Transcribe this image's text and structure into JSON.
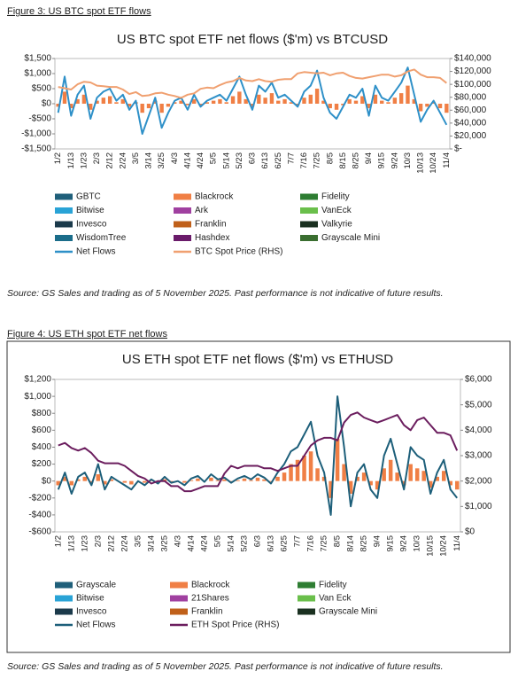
{
  "chart_data": [
    {
      "type": "combo",
      "caption": "Figure 3: US BTC spot ETF flows",
      "title": "US BTC spot ETF net flows ($'m) vs BTCUSD",
      "source": "Source: GS Sales and trading as of 5 November 2025. Past performance is not indicative of future results.",
      "categories": [
        "1/2",
        null,
        "1/13",
        null,
        "1/23",
        null,
        "2/3",
        null,
        "2/12",
        null,
        "2/24",
        null,
        "3/5",
        null,
        "3/14",
        null,
        "3/25",
        null,
        "4/3",
        null,
        "4/14",
        null,
        "4/24",
        null,
        "5/5",
        null,
        "5/14",
        null,
        "5/23",
        null,
        "6/3",
        null,
        "6/13",
        null,
        "6/25",
        null,
        "7/7",
        null,
        "7/16",
        null,
        "7/25",
        null,
        "8/5",
        null,
        "8/15",
        null,
        "8/25",
        null,
        "9/4",
        null,
        "9/15",
        null,
        "9/24",
        null,
        "10/3",
        null,
        "10/13",
        null,
        "10/24",
        null,
        "11/4"
      ],
      "ylim": [
        -1500,
        1500
      ],
      "yticks": [
        {
          "value": -1500,
          "label": "-$1,500"
        },
        {
          "value": -1000,
          "label": "-$1,000"
        },
        {
          "value": -500,
          "label": "-$500"
        },
        {
          "value": 0,
          "label": "$0"
        },
        {
          "value": 500,
          "label": "$500"
        },
        {
          "value": 1000,
          "label": "$1,000"
        },
        {
          "value": 1500,
          "label": "$1,500"
        }
      ],
      "y2lim": [
        0,
        140000
      ],
      "y2ticks": [
        {
          "value": 0,
          "label": "$-"
        },
        {
          "value": 20000,
          "label": "$20,000"
        },
        {
          "value": 40000,
          "label": "$40,000"
        },
        {
          "value": 60000,
          "label": "$60,000"
        },
        {
          "value": 80000,
          "label": "$80,000"
        },
        {
          "value": 100000,
          "label": "$100,000"
        },
        {
          "value": 120000,
          "label": "$120,000"
        },
        {
          "value": 140000,
          "label": "$140,000"
        }
      ],
      "series": [
        {
          "name": "GBTC",
          "kind": "bar",
          "color": "#1f5f7a"
        },
        {
          "name": "Blackrock",
          "kind": "bar",
          "color": "#f07f45",
          "values": [
            -100,
            400,
            -150,
            150,
            300,
            -200,
            100,
            200,
            250,
            50,
            150,
            -100,
            50,
            -300,
            -150,
            100,
            -300,
            -100,
            50,
            100,
            -50,
            150,
            -50,
            50,
            100,
            150,
            50,
            250,
            400,
            150,
            -100,
            300,
            200,
            350,
            100,
            150,
            50,
            -50,
            200,
            300,
            500,
            100,
            -150,
            -200,
            -50,
            150,
            100,
            250,
            -150,
            300,
            100,
            50,
            200,
            350,
            600,
            150,
            -250,
            -100,
            50,
            -150,
            -300
          ]
        },
        {
          "name": "Fidelity",
          "kind": "bar",
          "color": "#2e7d32"
        },
        {
          "name": "Bitwise",
          "kind": "bar",
          "color": "#29a3d6"
        },
        {
          "name": "Ark",
          "kind": "bar",
          "color": "#a040a0"
        },
        {
          "name": "VanEck",
          "kind": "bar",
          "color": "#6abf4b"
        },
        {
          "name": "Invesco",
          "kind": "bar",
          "color": "#1b3a4b"
        },
        {
          "name": "Franklin",
          "kind": "bar",
          "color": "#c0601a"
        },
        {
          "name": "Valkyrie",
          "kind": "bar",
          "color": "#1a3020"
        },
        {
          "name": "WisdomTree",
          "kind": "bar",
          "color": "#1b6d8a"
        },
        {
          "name": "Hashdex",
          "kind": "bar",
          "color": "#6a1b6a"
        },
        {
          "name": "Grayscale Mini",
          "kind": "bar",
          "color": "#3a6e30"
        },
        {
          "name": "Net Flows",
          "kind": "line",
          "color": "#2e90c8",
          "values": [
            -300,
            900,
            -400,
            300,
            600,
            -500,
            200,
            400,
            500,
            100,
            300,
            -200,
            100,
            -1000,
            -400,
            200,
            -800,
            -300,
            100,
            200,
            -200,
            300,
            -100,
            100,
            200,
            300,
            100,
            500,
            900,
            300,
            -200,
            600,
            400,
            700,
            200,
            300,
            100,
            -100,
            400,
            600,
            1100,
            200,
            -300,
            -500,
            -100,
            300,
            200,
            500,
            -400,
            600,
            200,
            100,
            400,
            700,
            1200,
            300,
            -600,
            -200,
            100,
            -300,
            -700
          ]
        },
        {
          "name": "BTC Spot Price (RHS)",
          "kind": "line",
          "axis": "y2",
          "color": "#f0a070",
          "values": [
            96000,
            94000,
            92000,
            100000,
            104000,
            103000,
            98000,
            97000,
            96000,
            96000,
            92000,
            85000,
            88000,
            82000,
            83000,
            86000,
            87000,
            84000,
            82000,
            79000,
            84000,
            86000,
            93000,
            95000,
            94000,
            99000,
            103000,
            105000,
            110000,
            106000,
            105000,
            108000,
            105000,
            104000,
            107000,
            108000,
            108000,
            117000,
            119000,
            118000,
            117000,
            118000,
            114000,
            117000,
            118000,
            113000,
            110000,
            109000,
            111000,
            113000,
            115000,
            115000,
            112000,
            114000,
            120000,
            123000,
            115000,
            111000,
            111000,
            110000,
            102000
          ]
        }
      ]
    },
    {
      "type": "combo",
      "caption": "Figure 4: US ETH spot ETF net flows",
      "title": "US ETH spot ETF net flows ($'m) vs ETHUSD",
      "source": "Source: GS Sales and trading as of 5 November 2025. Past performance is not indicative of future results.",
      "categories": [
        "1/2",
        null,
        "1/13",
        null,
        "1/23",
        null,
        "2/3",
        null,
        "2/12",
        null,
        "2/24",
        null,
        "3/5",
        null,
        "3/14",
        null,
        "3/25",
        null,
        "4/3",
        null,
        "4/14",
        null,
        "4/24",
        null,
        "5/5",
        null,
        "5/14",
        null,
        "5/23",
        null,
        "6/3",
        null,
        "6/13",
        null,
        "6/25",
        null,
        "7/7",
        null,
        "7/16",
        null,
        "7/25",
        null,
        "8/5",
        null,
        "8/14",
        null,
        "8/25",
        null,
        "9/4",
        null,
        "9/15",
        null,
        "9/24",
        null,
        "10/3",
        null,
        "10/15",
        null,
        "10/24",
        null,
        "11/4"
      ],
      "ylim": [
        -600,
        1200
      ],
      "yticks": [
        {
          "value": -600,
          "label": "-$600"
        },
        {
          "value": -400,
          "label": "-$400"
        },
        {
          "value": -200,
          "label": "-$200"
        },
        {
          "value": 0,
          "label": "$0"
        },
        {
          "value": 200,
          "label": "$200"
        },
        {
          "value": 400,
          "label": "$400"
        },
        {
          "value": 600,
          "label": "$600"
        },
        {
          "value": 800,
          "label": "$800"
        },
        {
          "value": 1000,
          "label": "$1,000"
        },
        {
          "value": 1200,
          "label": "$1,200"
        }
      ],
      "y2lim": [
        0,
        6000
      ],
      "y2ticks": [
        {
          "value": 0,
          "label": "$0"
        },
        {
          "value": 1000,
          "label": "$1,000"
        },
        {
          "value": 2000,
          "label": "$2,000"
        },
        {
          "value": 3000,
          "label": "$3,000"
        },
        {
          "value": 4000,
          "label": "$4,000"
        },
        {
          "value": 5000,
          "label": "$5,000"
        },
        {
          "value": 6000,
          "label": "$6,000"
        }
      ],
      "series": [
        {
          "name": "Grayscale",
          "kind": "bar",
          "color": "#1f5f7a"
        },
        {
          "name": "Blackrock",
          "kind": "bar",
          "color": "#f07f45",
          "values": [
            -50,
            50,
            -50,
            20,
            50,
            -20,
            80,
            -40,
            20,
            0,
            -20,
            -40,
            0,
            -20,
            10,
            -10,
            20,
            -10,
            0,
            -20,
            10,
            30,
            0,
            40,
            10,
            20,
            -10,
            10,
            30,
            10,
            40,
            20,
            -10,
            50,
            100,
            200,
            250,
            300,
            350,
            150,
            50,
            -200,
            500,
            200,
            -150,
            50,
            100,
            -50,
            -100,
            150,
            250,
            100,
            -50,
            200,
            150,
            120,
            -80,
            50,
            120,
            -50,
            -100
          ]
        },
        {
          "name": "Fidelity",
          "kind": "bar",
          "color": "#2e7d32"
        },
        {
          "name": "Bitwise",
          "kind": "bar",
          "color": "#29a3d6"
        },
        {
          "name": "21Shares",
          "kind": "bar",
          "color": "#a040a0"
        },
        {
          "name": "Van Eck",
          "kind": "bar",
          "color": "#6abf4b"
        },
        {
          "name": "Invesco",
          "kind": "bar",
          "color": "#1b3a4b"
        },
        {
          "name": "Franklin",
          "kind": "bar",
          "color": "#c0601a"
        },
        {
          "name": "Grayscale Mini",
          "kind": "bar",
          "color": "#1a3020"
        },
        {
          "name": "Net Flows",
          "kind": "line",
          "color": "#1d5f7a",
          "values": [
            -100,
            100,
            -150,
            50,
            100,
            -50,
            200,
            -100,
            50,
            0,
            -50,
            -100,
            0,
            -50,
            20,
            -30,
            50,
            -20,
            0,
            -50,
            30,
            60,
            -10,
            80,
            20,
            40,
            -20,
            30,
            60,
            20,
            80,
            40,
            -30,
            100,
            200,
            350,
            400,
            550,
            700,
            300,
            100,
            -400,
            1000,
            400,
            -300,
            100,
            200,
            -100,
            -200,
            300,
            500,
            200,
            -100,
            400,
            300,
            250,
            -150,
            100,
            250,
            -100,
            -200
          ]
        },
        {
          "name": "ETH Spot Price (RHS)",
          "kind": "line",
          "axis": "y2",
          "color": "#6b1d5e",
          "values": [
            3400,
            3500,
            3300,
            3200,
            3300,
            3100,
            2800,
            2700,
            2700,
            2700,
            2600,
            2400,
            2200,
            2100,
            1900,
            2000,
            2000,
            1800,
            1800,
            1600,
            1600,
            1700,
            1800,
            1800,
            1800,
            2300,
            2600,
            2500,
            2600,
            2600,
            2600,
            2500,
            2500,
            2400,
            2500,
            2600,
            2600,
            3000,
            3400,
            3600,
            3700,
            3700,
            3600,
            4300,
            4600,
            4700,
            4500,
            4400,
            4300,
            4400,
            4500,
            4600,
            4200,
            4000,
            4400,
            4500,
            4200,
            3900,
            3900,
            3800,
            3200
          ]
        }
      ]
    }
  ]
}
